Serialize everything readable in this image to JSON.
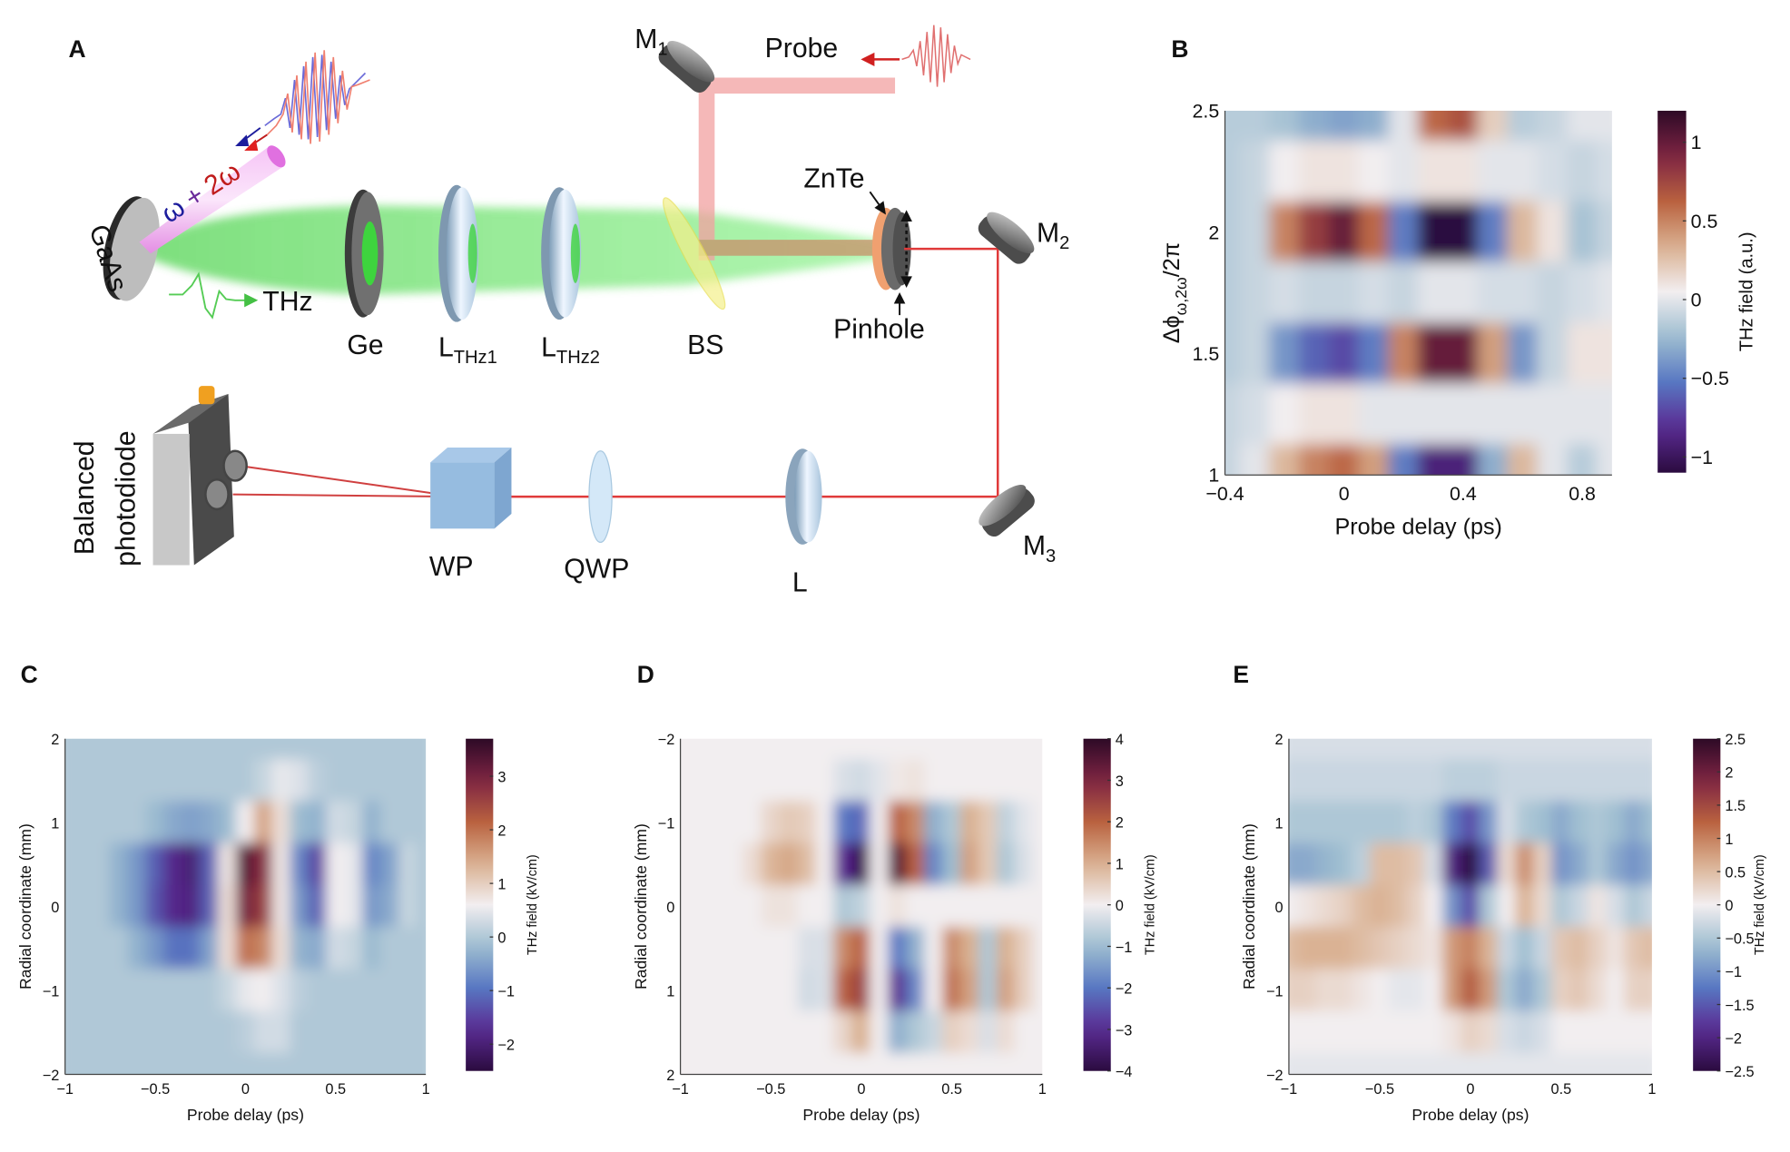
{
  "panel_labels": [
    "A",
    "B",
    "C",
    "D",
    "E"
  ],
  "diagram": {
    "source_label": "GaAs",
    "pump_label": {
      "omega": "ω",
      "plus": "+",
      "two_omega": "2ω"
    },
    "thz_label": "THz",
    "ge_label": "Ge",
    "lens1_label": {
      "main": "L",
      "sub": "THz1"
    },
    "lens2_label": {
      "main": "L",
      "sub": "THz2"
    },
    "bs_label": "BS",
    "probe_label": "Probe",
    "m1_label": {
      "main": "M",
      "sub": "1"
    },
    "m2_label": {
      "main": "M",
      "sub": "2"
    },
    "m3_label": {
      "main": "M",
      "sub": "3"
    },
    "znte_label": "ZnTe",
    "pinhole_label": "Pinhole",
    "lens_label": "L",
    "qwp_label": "QWP",
    "wp_label": "WP",
    "detector_label": [
      "Balanced",
      "photodiode"
    ],
    "colors": {
      "thz_beam": "#6fe36f",
      "probe_beam": "#f2a0a0",
      "pump_beam": "#e88ae8",
      "laser_line": "#e03a3a"
    }
  },
  "colormap": [
    "#2b0b3f",
    "#5a2b93",
    "#5877c2",
    "#9dbdd0",
    "#f2eef0",
    "#d9b090",
    "#b9613f",
    "#7e2443",
    "#2d0a26"
  ],
  "chart_data": [
    {
      "panel": "B",
      "type": "heatmap",
      "xlabel": "Probe delay (ps)",
      "ylabel": {
        "main": "Δϕ",
        "sub": "ω,2ω",
        "tail": "/2π"
      },
      "colorbar_label": "THz field (a.u.)",
      "xlim": [
        -0.4,
        0.9
      ],
      "ylim": [
        1,
        2.5
      ],
      "y_axis_reversed": false,
      "clim": [
        -1.1,
        1.2
      ],
      "x_ticks": [
        "−0.4",
        "0",
        "0.4",
        "0.8"
      ],
      "x_tick_values": [
        -0.4,
        0,
        0.4,
        0.8
      ],
      "y_ticks": [
        "1",
        "1.5",
        "2",
        "2.5"
      ],
      "y_tick_values": [
        1,
        1.5,
        2,
        2.5
      ],
      "colorbar_ticks": [
        "−1",
        "−0.5",
        "0",
        "0.5",
        "1"
      ],
      "colorbar_tick_values": [
        -1,
        -0.5,
        0,
        0.5,
        1
      ],
      "x": [
        -0.4,
        -0.3,
        -0.2,
        -0.1,
        0,
        0.1,
        0.2,
        0.3,
        0.4,
        0.5,
        0.6,
        0.7,
        0.8,
        0.9
      ],
      "y": [
        2.5,
        2.25,
        2.0,
        1.75,
        1.5,
        1.25,
        1.0
      ],
      "z": [
        [
          -0.15,
          -0.15,
          -0.2,
          -0.3,
          -0.35,
          -0.3,
          0,
          0.6,
          0.7,
          0.2,
          -0.15,
          -0.1,
          0,
          0
        ],
        [
          -0.15,
          -0.1,
          0.05,
          0.1,
          0.1,
          0.05,
          0,
          0.1,
          0.1,
          0,
          0,
          -0.05,
          -0.1,
          -0.05
        ],
        [
          -0.15,
          -0.1,
          0.5,
          0.8,
          1.0,
          0.6,
          -0.5,
          -1.2,
          -1.2,
          -0.5,
          0.3,
          0.1,
          -0.2,
          -0.1
        ],
        [
          -0.15,
          -0.1,
          -0.05,
          -0.1,
          -0.1,
          -0.05,
          -0.1,
          0,
          0,
          -0.05,
          -0.05,
          -0.1,
          -0.05,
          0
        ],
        [
          -0.15,
          -0.1,
          -0.4,
          -0.6,
          -0.7,
          -0.5,
          0.5,
          1.0,
          1.0,
          0.4,
          -0.4,
          -0.1,
          0.1,
          0.1
        ],
        [
          -0.1,
          -0.05,
          0.05,
          0.1,
          0.1,
          0,
          0,
          0,
          0,
          0,
          0,
          0,
          0,
          0
        ],
        [
          -0.1,
          0,
          0.3,
          0.5,
          0.6,
          0.4,
          -0.5,
          -0.9,
          -0.9,
          -0.3,
          0.3,
          0,
          -0.15,
          0
        ]
      ]
    },
    {
      "panel": "C",
      "type": "heatmap",
      "xlabel": "Probe delay (ps)",
      "ylabel": "Radial coordinate (mm)",
      "colorbar_label": "THz field (kV/cm)",
      "xlim": [
        -1,
        1
      ],
      "ylim": [
        -2,
        2
      ],
      "y_axis_reversed": false,
      "clim": [
        -2.5,
        3.7
      ],
      "x_ticks": [
        "−1",
        "−0.5",
        "0",
        "0.5",
        "1"
      ],
      "x_tick_values": [
        -1,
        -0.5,
        0,
        0.5,
        1
      ],
      "y_ticks": [
        "−2",
        "−1",
        "0",
        "1",
        "2"
      ],
      "y_tick_values": [
        -2,
        -1,
        0,
        1,
        2
      ],
      "colorbar_ticks": [
        "−2",
        "−1",
        "0",
        "1",
        "2",
        "3"
      ],
      "colorbar_tick_values": [
        -2,
        -1,
        0,
        1,
        2,
        3
      ],
      "x": [
        -1,
        -0.9,
        -0.8,
        -0.7,
        -0.6,
        -0.5,
        -0.4,
        -0.3,
        -0.2,
        -0.1,
        0,
        0.1,
        0.2,
        0.3,
        0.4,
        0.5,
        0.6,
        0.7,
        0.8,
        0.9,
        1
      ],
      "y": [
        2,
        1.5,
        1,
        0.5,
        0,
        -0.5,
        -1,
        -1.5,
        -2
      ],
      "z": [
        [
          0,
          0,
          0,
          0,
          0,
          0,
          0,
          0,
          0,
          0,
          0,
          0,
          0,
          0,
          0,
          0,
          0,
          0,
          0,
          0,
          0
        ],
        [
          0,
          0,
          0,
          0,
          0,
          0,
          0,
          0,
          0,
          0,
          0,
          0.2,
          0.5,
          0.4,
          0.1,
          0,
          0,
          0,
          0,
          0,
          0
        ],
        [
          0,
          0,
          0,
          0,
          0,
          -0.2,
          -0.4,
          -0.5,
          -0.4,
          -0.2,
          0.6,
          1.5,
          0.8,
          -0.2,
          -0.3,
          0.3,
          0.2,
          -0.3,
          0,
          0,
          0
        ],
        [
          0,
          0,
          0,
          -0.3,
          -0.6,
          -1.2,
          -1.8,
          -2.0,
          -1.2,
          0.7,
          3.3,
          2.8,
          0.7,
          -0.8,
          -1.5,
          0.6,
          0.5,
          -0.8,
          -0.5,
          0.2,
          0
        ],
        [
          0,
          0,
          0,
          -0.3,
          -0.6,
          -1.3,
          -1.8,
          -1.9,
          -1.2,
          0.8,
          3.0,
          2.6,
          0.7,
          -0.6,
          -1.2,
          0.6,
          0.5,
          -0.6,
          -0.4,
          0.2,
          0
        ],
        [
          0,
          0,
          0,
          0,
          -0.3,
          -0.6,
          -1.0,
          -1.0,
          -0.5,
          0.8,
          2.0,
          1.8,
          0.8,
          -0.3,
          -0.4,
          0.3,
          0.2,
          -0.2,
          0,
          0,
          0
        ],
        [
          0,
          0,
          0,
          0,
          0,
          0,
          0,
          0,
          0,
          0.2,
          0.5,
          0.6,
          0.4,
          0.1,
          0,
          0,
          0,
          0,
          0,
          0,
          0
        ],
        [
          0,
          0,
          0,
          0,
          0,
          0,
          0,
          0,
          0,
          0,
          0.1,
          0.3,
          0.3,
          0,
          0,
          0,
          0,
          0,
          0,
          0,
          0
        ],
        [
          0,
          0,
          0,
          0,
          0,
          0,
          0,
          0,
          0,
          0,
          0,
          0,
          0,
          0,
          0,
          0,
          0,
          0,
          0,
          0,
          0
        ]
      ]
    },
    {
      "panel": "D",
      "type": "heatmap",
      "xlabel": "Probe delay (ps)",
      "ylabel": "Radial coordinate (mm)",
      "colorbar_label": "THz field (kV/cm)",
      "xlim": [
        -1,
        1
      ],
      "ylim": [
        -2,
        2
      ],
      "y_axis_reversed": true,
      "clim": [
        -4,
        4
      ],
      "x_ticks": [
        "−1",
        "−0.5",
        "0",
        "0.5",
        "1"
      ],
      "x_tick_values": [
        -1,
        -0.5,
        0,
        0.5,
        1
      ],
      "y_ticks": [
        "−2",
        "−1",
        "0",
        "1",
        "2"
      ],
      "y_tick_values": [
        -2,
        -1,
        0,
        1,
        2
      ],
      "colorbar_ticks": [
        "−4",
        "−3",
        "−2",
        "−1",
        "0",
        "1",
        "2",
        "3",
        "4"
      ],
      "colorbar_tick_values": [
        -4,
        -3,
        -2,
        -1,
        0,
        1,
        2,
        3,
        4
      ],
      "x": [
        -1,
        -0.9,
        -0.8,
        -0.7,
        -0.6,
        -0.5,
        -0.4,
        -0.3,
        -0.2,
        -0.1,
        0,
        0.1,
        0.2,
        0.3,
        0.4,
        0.5,
        0.6,
        0.7,
        0.8,
        0.9,
        1
      ],
      "y": [
        -2,
        -1.5,
        -1,
        -0.5,
        0,
        0.5,
        1,
        1.5,
        2
      ],
      "z": [
        [
          0,
          0,
          0,
          0,
          0,
          0,
          0,
          0,
          0,
          0,
          0,
          0,
          0,
          0,
          0,
          0,
          0,
          0,
          0,
          0,
          0
        ],
        [
          0,
          0,
          0,
          0,
          0,
          0,
          0,
          0,
          0,
          -0.3,
          -0.4,
          -0.2,
          0.1,
          0.2,
          0,
          0,
          0,
          0,
          0,
          0,
          0
        ],
        [
          0,
          0,
          0,
          0,
          0,
          0.4,
          0.6,
          0.5,
          0,
          -2.0,
          -2.2,
          0,
          2.0,
          1.5,
          -1.2,
          -0.8,
          1.0,
          0.6,
          -0.6,
          -0.2,
          0
        ],
        [
          0,
          0,
          0,
          0,
          0.3,
          0.9,
          1.1,
          0.8,
          0,
          -3.0,
          -3.8,
          0,
          3.5,
          2.0,
          -1.8,
          -1.0,
          1.2,
          0.6,
          -0.8,
          -0.3,
          0
        ],
        [
          0,
          0,
          0,
          0,
          0,
          0.2,
          0.2,
          0,
          0,
          -0.8,
          -0.6,
          0,
          0.2,
          0,
          0,
          0,
          0,
          0,
          0,
          0,
          0
        ],
        [
          0,
          0,
          0,
          0,
          0,
          0,
          0,
          -0.3,
          -0.3,
          1.5,
          2.0,
          0,
          -2.0,
          -1.2,
          0,
          1.5,
          1.0,
          -0.8,
          1.0,
          0.5,
          0
        ],
        [
          0,
          0,
          0,
          0,
          0,
          0,
          0,
          -0.4,
          -0.3,
          2.0,
          2.5,
          0,
          -3.0,
          -1.8,
          0,
          1.8,
          1.2,
          -0.8,
          1.2,
          0.5,
          0
        ],
        [
          0,
          0,
          0,
          0,
          0,
          0,
          0,
          0,
          0,
          0.4,
          1.0,
          0,
          -1.2,
          -0.8,
          -0.5,
          0.5,
          0.3,
          -0.3,
          0.3,
          0,
          0
        ],
        [
          0,
          0,
          0,
          0,
          0,
          0,
          0,
          0,
          0,
          0,
          0,
          0,
          0,
          0,
          0,
          0,
          0,
          0,
          0,
          0,
          0
        ]
      ]
    },
    {
      "panel": "E",
      "type": "heatmap",
      "xlabel": "Probe delay (ps)",
      "ylabel": "Radial coordinate (mm)",
      "colorbar_label": "THz field (kV/cm)",
      "xlim": [
        -1,
        1
      ],
      "ylim": [
        -2,
        2
      ],
      "y_axis_reversed": false,
      "clim": [
        -2.5,
        2.5
      ],
      "x_ticks": [
        "−1",
        "−0.5",
        "0",
        "0.5",
        "1"
      ],
      "x_tick_values": [
        -1,
        -0.5,
        0,
        0.5,
        1
      ],
      "y_ticks": [
        "−2",
        "−1",
        "0",
        "1",
        "2"
      ],
      "y_tick_values": [
        -2,
        -1,
        0,
        1,
        2
      ],
      "colorbar_ticks": [
        "−2.5",
        "−2",
        "−1.5",
        "−1",
        "−0.5",
        "0",
        "0.5",
        "1",
        "1.5",
        "2",
        "2.5"
      ],
      "colorbar_tick_values": [
        -2.5,
        -2,
        -1.5,
        -1,
        -0.5,
        0,
        0.5,
        1,
        1.5,
        2,
        2.5
      ],
      "x": [
        -1,
        -0.9,
        -0.8,
        -0.7,
        -0.6,
        -0.5,
        -0.4,
        -0.3,
        -0.2,
        -0.1,
        0,
        0.1,
        0.2,
        0.3,
        0.4,
        0.5,
        0.6,
        0.7,
        0.8,
        0.9,
        1
      ],
      "y": [
        2,
        1.5,
        1,
        0.5,
        0,
        -0.5,
        -1,
        -1.5,
        -2
      ],
      "z": [
        [
          -0.2,
          -0.2,
          -0.2,
          -0.2,
          -0.2,
          -0.2,
          -0.2,
          -0.2,
          -0.2,
          -0.2,
          -0.2,
          -0.2,
          -0.2,
          -0.2,
          -0.2,
          -0.2,
          -0.2,
          -0.2,
          -0.2,
          -0.2,
          -0.2
        ],
        [
          -0.3,
          -0.3,
          -0.3,
          -0.3,
          -0.3,
          -0.3,
          -0.3,
          -0.3,
          -0.3,
          -0.4,
          -0.4,
          -0.4,
          -0.3,
          -0.3,
          -0.3,
          -0.3,
          -0.3,
          -0.3,
          -0.3,
          -0.3,
          -0.3
        ],
        [
          -0.5,
          -0.5,
          -0.5,
          -0.5,
          -0.5,
          -0.5,
          -0.5,
          -0.4,
          -0.5,
          -1.2,
          -1.6,
          -1.0,
          -0.2,
          -0.5,
          -0.6,
          -0.8,
          -0.6,
          -0.5,
          -0.6,
          -0.8,
          -0.6
        ],
        [
          -0.8,
          -0.8,
          -0.7,
          -0.6,
          -0.4,
          0.5,
          0.5,
          0.4,
          -0.2,
          -2.0,
          -2.5,
          -1.5,
          0.2,
          0.9,
          0.3,
          -1.0,
          -0.8,
          -0.5,
          -0.8,
          -1.0,
          -0.8
        ],
        [
          0,
          0.1,
          0.2,
          0.3,
          0.5,
          0.6,
          0.5,
          0.3,
          0,
          -1.0,
          -1.6,
          -0.5,
          0,
          0.6,
          0.2,
          -0.5,
          -0.3,
          0.1,
          -0.2,
          -0.5,
          -0.3
        ],
        [
          0.5,
          0.6,
          0.6,
          0.6,
          0.5,
          0.4,
          0.3,
          0.2,
          0.1,
          0.8,
          1.0,
          0.6,
          -0.3,
          -0.6,
          -0.3,
          0.4,
          0.5,
          0.3,
          0.1,
          0.4,
          0.5
        ],
        [
          0.3,
          0.3,
          0.2,
          0.2,
          0.1,
          0,
          -0.1,
          -0.1,
          0,
          0.8,
          1.3,
          0.8,
          -0.5,
          -0.8,
          -0.5,
          0.3,
          0.4,
          0.2,
          0,
          0.3,
          0.3
        ],
        [
          0,
          0,
          0,
          0,
          0,
          0,
          0,
          0,
          0,
          0.1,
          0.3,
          0.2,
          -0.2,
          -0.3,
          -0.2,
          0,
          0,
          0,
          0,
          0,
          0
        ],
        [
          -0.1,
          -0.1,
          -0.1,
          -0.1,
          -0.1,
          -0.1,
          -0.1,
          -0.1,
          -0.1,
          -0.1,
          -0.1,
          -0.1,
          -0.1,
          -0.1,
          -0.1,
          -0.1,
          -0.1,
          -0.1,
          -0.1,
          -0.1,
          -0.1
        ]
      ]
    }
  ]
}
